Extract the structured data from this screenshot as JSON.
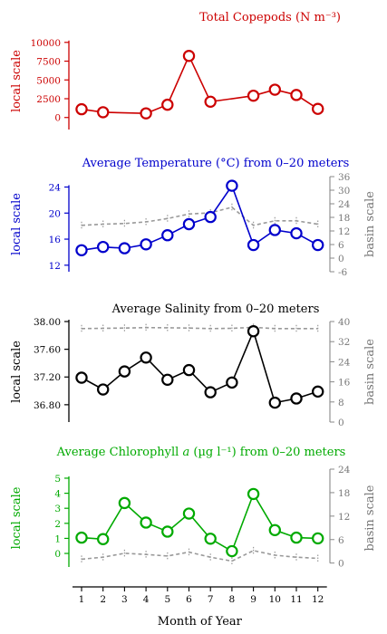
{
  "chart_data": [
    {
      "type": "line",
      "title": "Total Copepods (N m⁻³)",
      "color": "#cc0000",
      "ylabel_left": "local scale",
      "ylabel_right": "",
      "x": [
        1,
        2,
        4,
        5,
        6,
        7,
        9,
        10,
        11,
        12
      ],
      "values": [
        1100,
        700,
        550,
        1700,
        8200,
        2100,
        2900,
        3700,
        3000,
        1150
      ],
      "yticks_left": [
        0,
        2500,
        5000,
        7500,
        10000
      ],
      "yticks_left_labels": [
        "0",
        "2500",
        "5000",
        "7500",
        "10000"
      ],
      "ylim_left": [
        -1600,
        11300
      ],
      "basin_values": [],
      "yticks_right": [],
      "ylim_right": []
    },
    {
      "type": "line",
      "title": "Average Temperature (°C) from 0–20 meters",
      "color": "#0000cc",
      "ylabel_left": "local scale",
      "ylabel_right": "basin scale",
      "x": [
        1,
        2,
        3,
        4,
        5,
        6,
        7,
        8,
        9,
        10,
        11,
        12
      ],
      "values": [
        14.3,
        14.8,
        14.6,
        15.2,
        16.6,
        18.3,
        19.4,
        24.2,
        15.1,
        17.4,
        16.9,
        15.1
      ],
      "yticks_left": [
        12,
        16,
        20,
        24
      ],
      "yticks_left_labels": [
        "12",
        "16",
        "20",
        "24"
      ],
      "ylim_left": [
        11.0,
        25.6
      ],
      "basin_values": [
        14.5,
        15.0,
        15.3,
        16.0,
        17.5,
        19.5,
        20.0,
        22.5,
        14.5,
        16.5,
        16.5,
        15.0
      ],
      "yticks_right": [
        -6,
        0,
        6,
        12,
        18,
        24,
        30,
        36
      ],
      "yticks_right_labels": [
        "-6",
        "0",
        "6",
        "12",
        "18",
        "24",
        "30",
        "36"
      ],
      "ylim_right": [
        -6,
        36
      ]
    },
    {
      "type": "line",
      "title": "Average Salinity from 0–20 meters",
      "color": "#000000",
      "ylabel_left": "local scale",
      "ylabel_right": "basin scale",
      "x": [
        1,
        2,
        3,
        4,
        5,
        6,
        7,
        8,
        9,
        10,
        11,
        12
      ],
      "values": [
        37.19,
        37.02,
        37.28,
        37.48,
        37.16,
        37.3,
        36.98,
        37.12,
        37.86,
        36.83,
        36.89,
        36.99
      ],
      "yticks_left": [
        36.8,
        37.2,
        37.6,
        38.0
      ],
      "yticks_left_labels": [
        "36.80",
        "37.20",
        "37.60",
        "38.00"
      ],
      "ylim_left": [
        36.55,
        38.0
      ],
      "basin_values": [
        37.2,
        37.3,
        37.4,
        37.6,
        37.5,
        37.4,
        37.2,
        37.3,
        37.7,
        37.2,
        37.2,
        37.2
      ],
      "yticks_right": [
        0,
        8,
        16,
        24,
        32,
        40
      ],
      "yticks_right_labels": [
        "0",
        "8",
        "16",
        "24",
        "32",
        "40"
      ],
      "ylim_right": [
        0,
        40
      ]
    },
    {
      "type": "line",
      "title": "Average Chlorophyll a (µg l⁻¹) from 0–20 meters",
      "title_parts": {
        "pre": "Average Chlorophyll ",
        "ital": "a",
        "post": " (µg l⁻¹) from 0–20 meters"
      },
      "color": "#00aa00",
      "ylabel_left": "local scale",
      "ylabel_right": "basin scale",
      "x": [
        1,
        2,
        3,
        4,
        5,
        6,
        7,
        8,
        9,
        10,
        11,
        12
      ],
      "values": [
        1.05,
        0.95,
        3.35,
        2.05,
        1.45,
        2.65,
        0.98,
        0.15,
        3.95,
        1.55,
        1.05,
        1.0
      ],
      "yticks_left": [
        0,
        1,
        2,
        3,
        4,
        5
      ],
      "yticks_left_labels": [
        "0",
        "1",
        "2",
        "3",
        "4",
        "5"
      ],
      "ylim_left": [
        -0.9,
        5.6
      ],
      "basin_values": [
        1.0,
        1.5,
        2.5,
        2.2,
        1.8,
        2.8,
        1.5,
        0.5,
        3.2,
        2.0,
        1.5,
        1.2
      ],
      "yticks_right": [
        0,
        6,
        12,
        18,
        24
      ],
      "yticks_right_labels": [
        "0",
        "6",
        "12",
        "18",
        "24"
      ],
      "ylim_right": [
        -1,
        24
      ]
    }
  ],
  "xaxis": {
    "label": "Month of Year",
    "ticks": [
      1,
      2,
      3,
      4,
      5,
      6,
      7,
      8,
      9,
      10,
      11,
      12
    ],
    "tick_labels": [
      "1",
      "2",
      "3",
      "4",
      "5",
      "6",
      "7",
      "8",
      "9",
      "10",
      "11",
      "12"
    ]
  },
  "basin_color": "#999999"
}
